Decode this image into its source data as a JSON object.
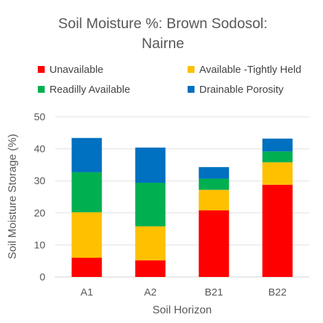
{
  "chart_data": {
    "type": "bar",
    "stacked": true,
    "title_lines": [
      "Soil Moisture %: Brown Sodosol:",
      "Nairne"
    ],
    "xlabel": "Soil Horizon",
    "ylabel": "Soil Moisture Storage (%)",
    "ylim": [
      0,
      50
    ],
    "yticks": [
      0,
      10,
      20,
      30,
      40,
      50
    ],
    "grid": true,
    "legend_position": "top",
    "categories": [
      "A1",
      "A2",
      "B21",
      "B22"
    ],
    "series": [
      {
        "name": "Unavailable",
        "color": "#ff0000",
        "values": [
          6.0,
          5.2,
          20.8,
          28.8
        ]
      },
      {
        "name": "Available -Tightly Held",
        "color": "#ffc000",
        "values": [
          14.2,
          10.6,
          6.4,
          7.0
        ]
      },
      {
        "name": "Readilly Available",
        "color": "#00b050",
        "values": [
          12.5,
          13.6,
          3.5,
          3.4
        ]
      },
      {
        "name": "Drainable Porosity",
        "color": "#0070c0",
        "values": [
          10.7,
          11.0,
          3.6,
          4.0
        ]
      }
    ]
  }
}
